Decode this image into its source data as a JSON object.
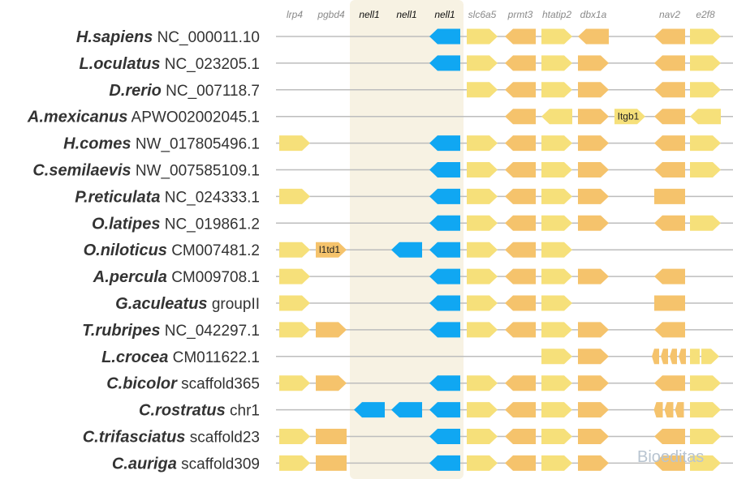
{
  "colors": {
    "light": "#f6e07a",
    "dark": "#f5c36c",
    "blue": "#10a7f2",
    "highlight": "#f7f2e3",
    "line": "#bdbdbd"
  },
  "gene_columns": [
    {
      "name": "lrp4",
      "highlight": false
    },
    {
      "name": "pgbd4",
      "highlight": false
    },
    {
      "name": "nell1",
      "highlight": true
    },
    {
      "name": "nell1",
      "highlight": true
    },
    {
      "name": "nell1",
      "highlight": true
    },
    {
      "name": "slc6a5",
      "highlight": false
    },
    {
      "name": "prmt3",
      "highlight": false
    },
    {
      "name": "htatip2",
      "highlight": false
    },
    {
      "name": "dbx1a",
      "highlight": false
    },
    {
      "name": "",
      "highlight": false
    },
    {
      "name": "nav2",
      "highlight": false
    },
    {
      "name": "e2f8",
      "highlight": false
    }
  ],
  "rows": [
    {
      "species": "H.sapiens",
      "accession": "NC_000011.10",
      "genes": [
        [
          4,
          "L",
          "B"
        ],
        [
          5,
          "R",
          "Y"
        ],
        [
          6,
          "L",
          "O"
        ],
        [
          7,
          "R",
          "Y"
        ],
        [
          8,
          "L",
          "O"
        ],
        [
          10,
          "L",
          "O"
        ],
        [
          11,
          "R",
          "Y"
        ]
      ]
    },
    {
      "species": "L.oculatus",
      "accession": "NC_023205.1",
      "genes": [
        [
          4,
          "L",
          "B"
        ],
        [
          5,
          "R",
          "Y"
        ],
        [
          6,
          "L",
          "O"
        ],
        [
          7,
          "R",
          "Y"
        ],
        [
          8,
          "R",
          "O"
        ],
        [
          10,
          "L",
          "O"
        ],
        [
          11,
          "R",
          "Y"
        ]
      ]
    },
    {
      "species": "D.rerio",
      "accession": "NC_007118.7",
      "genes": [
        [
          5,
          "R",
          "Y"
        ],
        [
          6,
          "L",
          "O"
        ],
        [
          7,
          "R",
          "Y"
        ],
        [
          8,
          "R",
          "O"
        ],
        [
          10,
          "L",
          "O"
        ],
        [
          11,
          "R",
          "Y"
        ]
      ]
    },
    {
      "species": "A.mexicanus",
      "accession": "APWO02002045.1",
      "genes": [
        [
          6,
          "L",
          "O"
        ],
        [
          7,
          "L",
          "Y"
        ],
        [
          8,
          "R",
          "O"
        ],
        [
          9,
          "R",
          "Y",
          "Itgb1"
        ],
        [
          10,
          "L",
          "O"
        ],
        [
          11,
          "L",
          "Y"
        ]
      ]
    },
    {
      "species": "H.comes",
      "accession": "NW_017805496.1",
      "genes": [
        [
          0,
          "R",
          "Y"
        ],
        [
          4,
          "L",
          "B"
        ],
        [
          5,
          "R",
          "Y"
        ],
        [
          6,
          "L",
          "O"
        ],
        [
          7,
          "R",
          "Y"
        ],
        [
          8,
          "R",
          "O"
        ],
        [
          10,
          "L",
          "O"
        ],
        [
          11,
          "R",
          "Y"
        ]
      ]
    },
    {
      "species": "C.semilaevis",
      "accession": "NW_007585109.1",
      "genes": [
        [
          4,
          "L",
          "B"
        ],
        [
          5,
          "R",
          "Y"
        ],
        [
          6,
          "L",
          "O"
        ],
        [
          7,
          "R",
          "Y"
        ],
        [
          8,
          "R",
          "O"
        ],
        [
          10,
          "L",
          "O"
        ],
        [
          11,
          "R",
          "Y"
        ]
      ]
    },
    {
      "species": "P.reticulata",
      "accession": "NC_024333.1",
      "genes": [
        [
          0,
          "R",
          "Y"
        ],
        [
          4,
          "L",
          "B"
        ],
        [
          5,
          "R",
          "Y"
        ],
        [
          6,
          "L",
          "O"
        ],
        [
          7,
          "R",
          "Y"
        ],
        [
          8,
          "R",
          "O"
        ],
        [
          10,
          "N",
          "O"
        ]
      ]
    },
    {
      "species": "O.latipes",
      "accession": "NC_019861.2",
      "genes": [
        [
          4,
          "L",
          "B"
        ],
        [
          5,
          "R",
          "Y"
        ],
        [
          6,
          "L",
          "O"
        ],
        [
          7,
          "R",
          "Y"
        ],
        [
          8,
          "R",
          "O"
        ],
        [
          10,
          "L",
          "O"
        ],
        [
          11,
          "R",
          "Y"
        ]
      ]
    },
    {
      "species": "O.niloticus",
      "accession": "CM007481.2",
      "genes": [
        [
          0,
          "R",
          "Y"
        ],
        [
          1,
          "R",
          "O",
          "l1td1"
        ],
        [
          3,
          "L",
          "B"
        ],
        [
          4,
          "L",
          "B"
        ],
        [
          5,
          "R",
          "Y"
        ],
        [
          6,
          "L",
          "O"
        ],
        [
          7,
          "R",
          "Y"
        ]
      ]
    },
    {
      "species": "A.percula",
      "accession": "CM009708.1",
      "genes": [
        [
          0,
          "R",
          "Y"
        ],
        [
          4,
          "L",
          "B"
        ],
        [
          5,
          "R",
          "Y"
        ],
        [
          6,
          "L",
          "O"
        ],
        [
          7,
          "R",
          "Y"
        ],
        [
          8,
          "R",
          "O"
        ],
        [
          10,
          "L",
          "O"
        ]
      ]
    },
    {
      "species": "G.aculeatus",
      "accession": "groupII",
      "genes": [
        [
          0,
          "R",
          "Y"
        ],
        [
          4,
          "L",
          "B"
        ],
        [
          5,
          "R",
          "Y"
        ],
        [
          6,
          "L",
          "O"
        ],
        [
          7,
          "R",
          "Y"
        ],
        [
          10,
          "N",
          "O"
        ]
      ]
    },
    {
      "species": "T.rubripes",
      "accession": "NC_042297.1",
      "genes": [
        [
          0,
          "R",
          "Y"
        ],
        [
          1,
          "R",
          "O"
        ],
        [
          4,
          "L",
          "B"
        ],
        [
          5,
          "R",
          "Y"
        ],
        [
          6,
          "L",
          "O"
        ],
        [
          7,
          "R",
          "Y"
        ],
        [
          8,
          "R",
          "O"
        ],
        [
          10,
          "L",
          "O"
        ]
      ]
    },
    {
      "species": "L.crocea",
      "accession": "CM011622.1",
      "genes": [
        [
          7,
          "R",
          "Y"
        ],
        [
          8,
          "R",
          "O"
        ],
        [
          10,
          "F",
          "O"
        ],
        [
          11,
          "S",
          "Y"
        ]
      ]
    },
    {
      "species": "C.bicolor",
      "accession": "scaffold365",
      "genes": [
        [
          0,
          "R",
          "Y"
        ],
        [
          1,
          "R",
          "O"
        ],
        [
          4,
          "L",
          "B"
        ],
        [
          5,
          "R",
          "Y"
        ],
        [
          6,
          "L",
          "O"
        ],
        [
          7,
          "R",
          "Y"
        ],
        [
          8,
          "R",
          "O"
        ],
        [
          10,
          "L",
          "O"
        ],
        [
          11,
          "R",
          "Y"
        ]
      ]
    },
    {
      "species": "C.rostratus",
      "accession": "chr1",
      "genes": [
        [
          2,
          "L",
          "B"
        ],
        [
          3,
          "L",
          "B"
        ],
        [
          4,
          "L",
          "B"
        ],
        [
          5,
          "R",
          "Y"
        ],
        [
          6,
          "L",
          "O"
        ],
        [
          7,
          "R",
          "Y"
        ],
        [
          8,
          "R",
          "O"
        ],
        [
          10,
          "F3",
          "O"
        ],
        [
          11,
          "R",
          "Y"
        ]
      ]
    },
    {
      "species": "C.trifasciatus",
      "accession": "scaffold23",
      "genes": [
        [
          0,
          "R",
          "Y"
        ],
        [
          1,
          "N",
          "O"
        ],
        [
          4,
          "L",
          "B"
        ],
        [
          5,
          "R",
          "Y"
        ],
        [
          6,
          "L",
          "O"
        ],
        [
          7,
          "R",
          "Y"
        ],
        [
          8,
          "R",
          "O"
        ],
        [
          10,
          "L",
          "O"
        ],
        [
          11,
          "R",
          "Y"
        ]
      ]
    },
    {
      "species": "C.auriga",
      "accession": "scaffold309",
      "genes": [
        [
          0,
          "R",
          "Y"
        ],
        [
          1,
          "N",
          "O"
        ],
        [
          4,
          "L",
          "B"
        ],
        [
          5,
          "R",
          "Y"
        ],
        [
          6,
          "L",
          "O"
        ],
        [
          7,
          "R",
          "Y"
        ],
        [
          8,
          "R",
          "O"
        ],
        [
          10,
          "L",
          "O"
        ],
        [
          11,
          "R",
          "Y"
        ]
      ]
    }
  ],
  "watermark": "Bioeditas"
}
